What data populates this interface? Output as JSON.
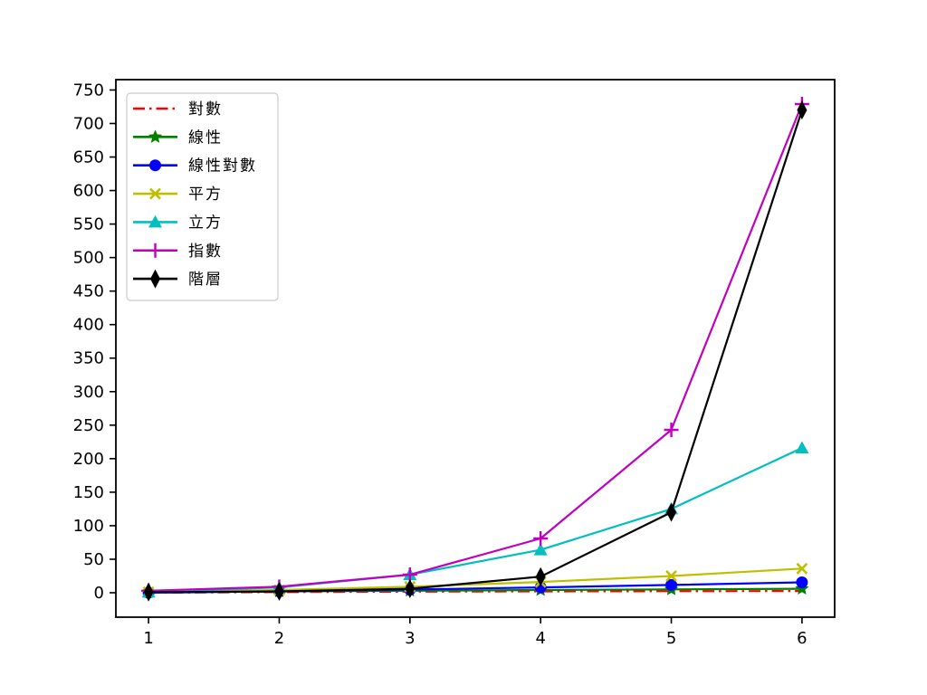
{
  "figure": {
    "background": "#ffffff",
    "axes_edge_color": "#000000",
    "tick_color": "#000000",
    "legend_border_color": "#cccccc",
    "legend_background": "#ffffff"
  },
  "chart_data": {
    "type": "line",
    "title": "",
    "xlabel": "",
    "ylabel": "",
    "x": [
      1,
      2,
      3,
      4,
      5,
      6
    ],
    "xlim": [
      0.75,
      6.25
    ],
    "ylim": [
      -36.45,
      765.45
    ],
    "x_ticks": [
      "1",
      "2",
      "3",
      "4",
      "5",
      "6"
    ],
    "y_ticks": [
      "0",
      "50",
      "100",
      "150",
      "200",
      "250",
      "300",
      "350",
      "400",
      "450",
      "500",
      "550",
      "600",
      "650",
      "700",
      "750"
    ],
    "y_tick_values": [
      0,
      50,
      100,
      150,
      200,
      250,
      300,
      350,
      400,
      450,
      500,
      550,
      600,
      650,
      700,
      750
    ],
    "grid": false,
    "legend_position": "upper left",
    "series": [
      {
        "name": "對數",
        "color": "#ff0000",
        "linestyle": "dashdot",
        "marker": "none",
        "values": [
          0,
          1,
          1.58,
          2,
          2.32,
          2.58
        ]
      },
      {
        "name": "線性",
        "color": "#008000",
        "linestyle": "solid",
        "marker": "star",
        "values": [
          1,
          2,
          3,
          4,
          5,
          6
        ]
      },
      {
        "name": "線性對數",
        "color": "#0000ff",
        "linestyle": "solid",
        "marker": "circle",
        "values": [
          0,
          2,
          4.75,
          8,
          11.61,
          15.51
        ]
      },
      {
        "name": "平方",
        "color": "#bfbf00",
        "linestyle": "solid",
        "marker": "x",
        "values": [
          1,
          4,
          9,
          16,
          25,
          36
        ]
      },
      {
        "name": "立方",
        "color": "#00bfbf",
        "linestyle": "solid",
        "marker": "triangle-up",
        "values": [
          1,
          8,
          27,
          64,
          125,
          216
        ]
      },
      {
        "name": "指數",
        "color": "#bf00bf",
        "linestyle": "solid",
        "marker": "plus",
        "values": [
          3,
          9,
          27,
          81,
          243,
          729
        ]
      },
      {
        "name": "階層",
        "color": "#000000",
        "linestyle": "solid",
        "marker": "thin-diamond",
        "values": [
          1,
          2,
          6,
          24,
          120,
          720
        ]
      }
    ]
  }
}
